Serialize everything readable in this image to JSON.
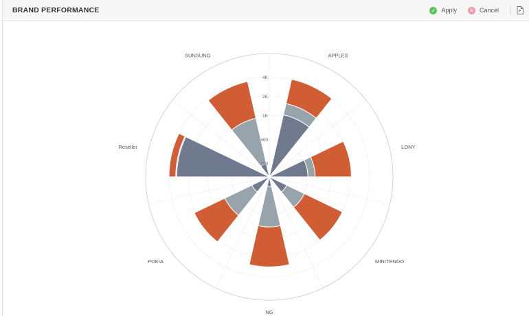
{
  "header": {
    "title": "BRAND PERFORMANCE",
    "apply_label": "Apply",
    "cancel_label": "Cancel",
    "icons": {
      "apply": "check-circle-icon",
      "cancel": "close-circle-icon",
      "export": "export-document-icon"
    }
  },
  "chart_data": {
    "type": "polar-bar (nightingale rose, stacked)",
    "title": "",
    "radial_axis": {
      "scale": "nonlinear",
      "ticks": [
        100,
        400,
        1000,
        2000,
        4000
      ],
      "tick_labels": [
        "100",
        "400",
        "1K",
        "2K",
        "4K"
      ]
    },
    "categories": [
      "APPLES",
      "LONY",
      "MINITENDO",
      "NG",
      "POKIA",
      "Reseller",
      "SUNSUNG"
    ],
    "series": [
      {
        "color": "#6f7a8f",
        "values": [
          1100,
          420,
          170,
          70,
          170,
          3200,
          100
        ]
      },
      {
        "color": "#98a4ab",
        "values": [
          600,
          180,
          260,
          640,
          520,
          100,
          860
        ]
      },
      {
        "color": "#d15d35",
        "values": [
          2300,
          1500,
          1570,
          2240,
          1540,
          2200,
          2800
        ]
      }
    ],
    "grid": true,
    "legend": "none"
  }
}
